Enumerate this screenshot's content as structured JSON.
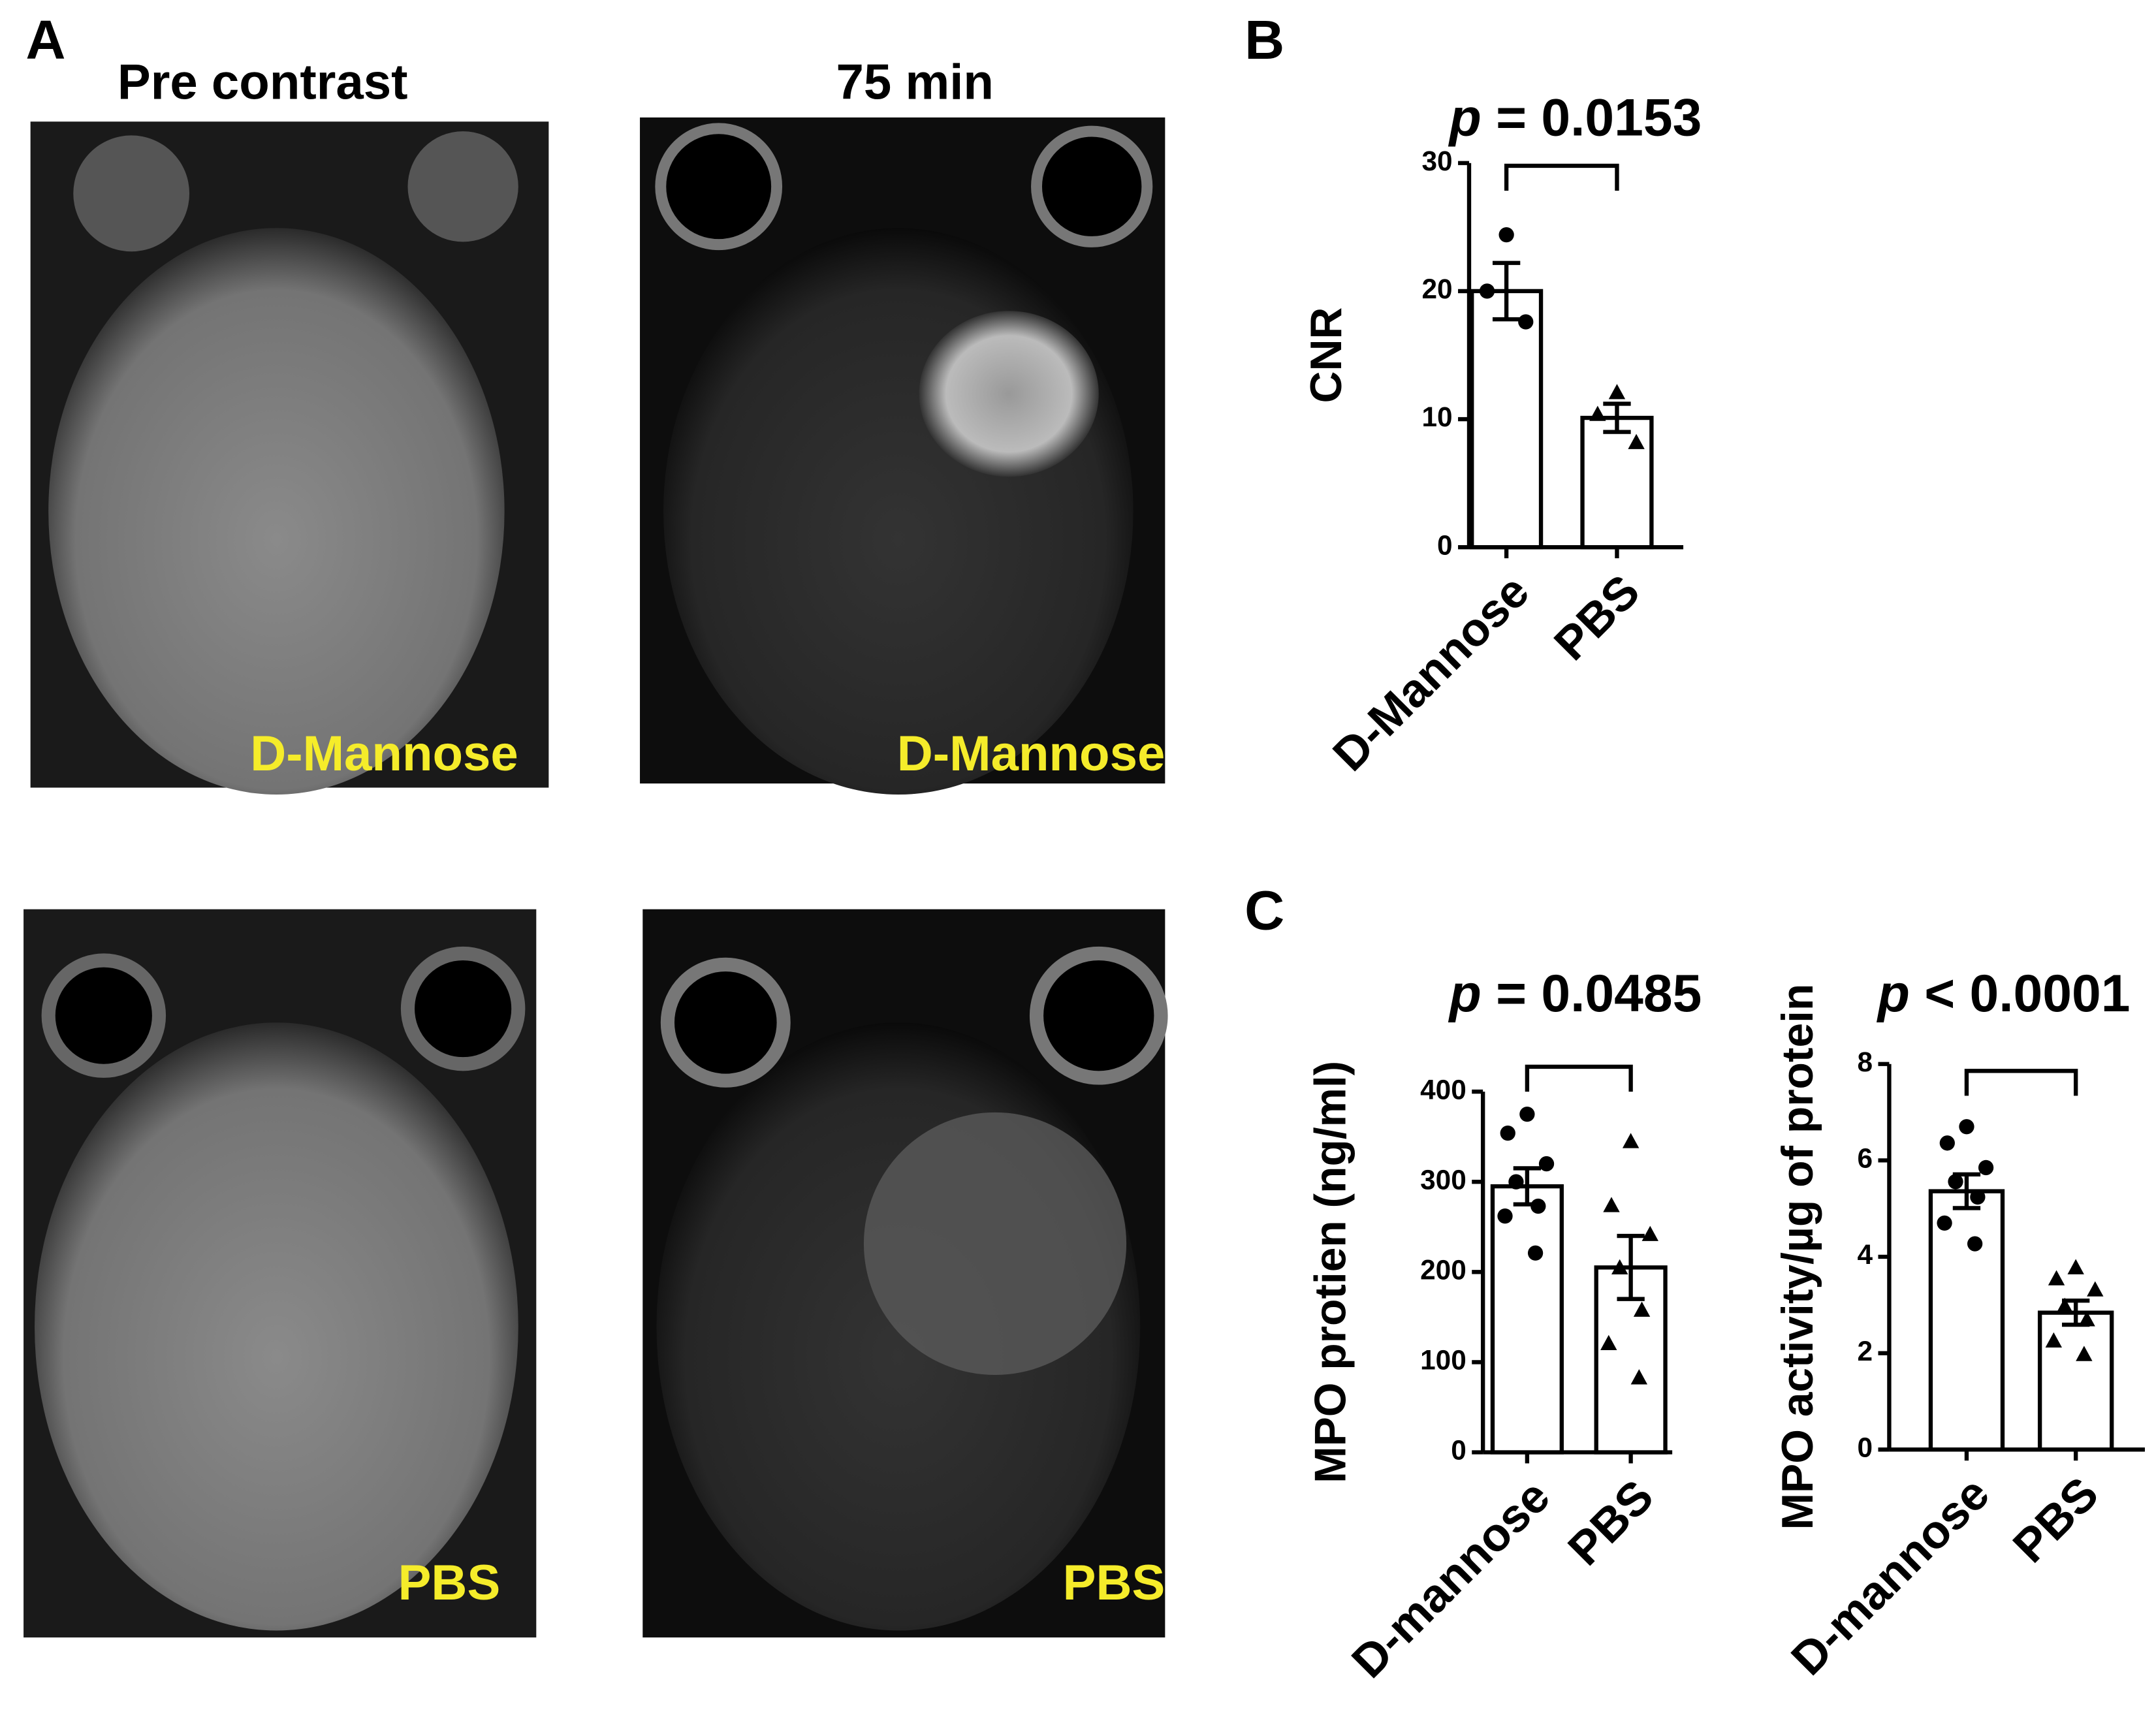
{
  "panel_labels": [
    "A",
    "B",
    "C"
  ],
  "images": {
    "columns": [
      "Pre contrast",
      "75 min"
    ],
    "rows": [
      "D-Mannose",
      "PBS"
    ]
  },
  "chart_data": [
    {
      "type": "bar",
      "annotation": {
        "italic": "p",
        "text": "= 0.0153"
      },
      "ylabel": "CNR",
      "categories": [
        "D-Mannose",
        "PBS"
      ],
      "values": [
        20,
        10.1
      ],
      "errors": [
        2.2,
        1.1
      ],
      "points": [
        [
          24.4,
          20,
          17.6
        ],
        [
          12.1,
          10.4,
          8.2
        ]
      ],
      "markers": [
        "circle",
        "triangle"
      ],
      "color": "#ffffff",
      "edgecolor": "#000000",
      "ylim": [
        0,
        30
      ],
      "yticks": [
        0,
        10,
        20,
        30
      ],
      "grid": false
    },
    {
      "type": "bar",
      "annotation": {
        "italic": "p",
        "text": "= 0.0485"
      },
      "ylabel": "MPO protien (ng/ml)",
      "categories": [
        "D-mannose",
        "PBS"
      ],
      "values": [
        295,
        205
      ],
      "errors": [
        20,
        35
      ],
      "points": [
        [
          375,
          354,
          320,
          300,
          273,
          262,
          221
        ],
        [
          345,
          274,
          242,
          205,
          158,
          121,
          83
        ]
      ],
      "markers": [
        "circle",
        "triangle"
      ],
      "color": "#ffffff",
      "edgecolor": "#000000",
      "ylim": [
        0,
        400
      ],
      "yticks": [
        0,
        100,
        200,
        300,
        400
      ],
      "grid": false
    },
    {
      "type": "bar",
      "annotation": {
        "italic": "p",
        "text": "< 0.0001"
      },
      "ylabel": "MPO activity/µg of protein",
      "categories": [
        "D-mannose",
        "PBS"
      ],
      "values": [
        5.36,
        2.84
      ],
      "errors": [
        0.35,
        0.25
      ],
      "points": [
        [
          6.7,
          6.36,
          5.85,
          5.56,
          5.24,
          4.7,
          4.27
        ],
        [
          3.78,
          3.55,
          3.32,
          2.98,
          2.7,
          2.26,
          1.98
        ]
      ],
      "markers": [
        "circle",
        "triangle"
      ],
      "color": "#ffffff",
      "edgecolor": "#000000",
      "ylim": [
        0,
        8
      ],
      "yticks": [
        0,
        2,
        4,
        6,
        8
      ],
      "grid": false
    }
  ]
}
